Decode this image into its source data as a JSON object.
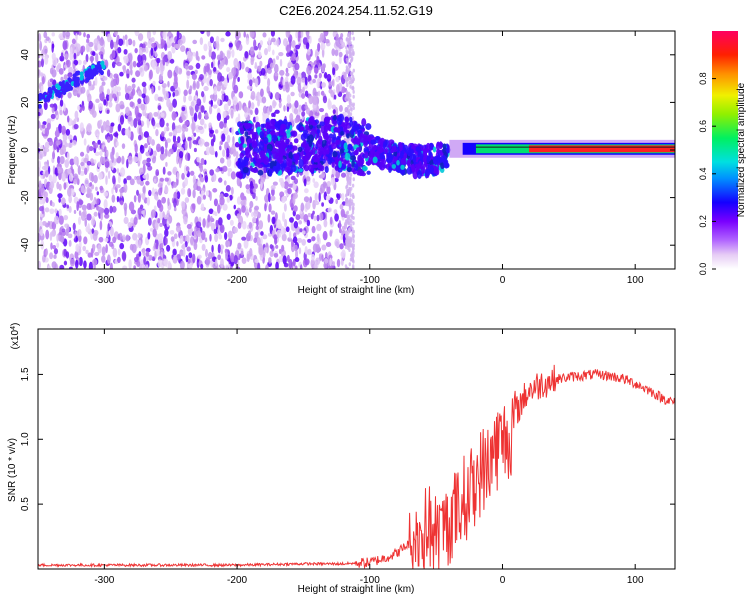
{
  "title": "C2E6.2024.254.11.52.G19",
  "chart_data": [
    {
      "type": "heatmap",
      "title": "C2E6.2024.254.11.52.G19",
      "xlabel": "Height of straight line (km)",
      "ylabel": "Frequency (Hz)",
      "xlim": [
        -350,
        130
      ],
      "ylim": [
        -50,
        50
      ],
      "xticks": [
        -300,
        -200,
        -100,
        0,
        100
      ],
      "yticks": [
        -40,
        -20,
        0,
        20,
        40
      ],
      "colorbar": {
        "label": "Normalized spectral amplitude",
        "range": [
          0,
          1
        ],
        "ticks": [
          "0.0",
          "0.2",
          "0.4",
          "0.6",
          "0.8"
        ]
      },
      "signal_track": {
        "description_points_x": [
          -350,
          -320,
          -300,
          -250,
          -200,
          -150,
          -120,
          -100,
          -80,
          -60,
          -40,
          -20,
          0,
          50,
          100,
          130
        ],
        "description_points_y": [
          20,
          30,
          35,
          5,
          0,
          2,
          3,
          0,
          -3,
          -5,
          -2,
          0,
          1,
          1,
          1,
          1
        ]
      }
    },
    {
      "type": "line",
      "xlabel": "Height of straight line (km)",
      "ylabel": "SNR (10 * v/v)",
      "y_multiplier": "(x10^4)",
      "xlim": [
        -350,
        130
      ],
      "ylim": [
        0,
        1.85
      ],
      "xticks": [
        -300,
        -200,
        -100,
        0,
        100
      ],
      "yticks": [
        0.5,
        1.0,
        1.5
      ],
      "series": [
        {
          "color": "#ee3333",
          "x": [
            -350,
            -300,
            -250,
            -200,
            -150,
            -120,
            -100,
            -90,
            -80,
            -70,
            -60,
            -55,
            -50,
            -45,
            -40,
            -35,
            -30,
            -25,
            -20,
            -15,
            -12,
            -10,
            -5,
            0,
            5,
            10,
            15,
            20,
            30,
            40,
            50,
            60,
            70,
            80,
            90,
            100,
            110,
            120,
            130
          ],
          "y": [
            0.03,
            0.03,
            0.03,
            0.03,
            0.04,
            0.04,
            0.05,
            0.08,
            0.12,
            0.2,
            0.35,
            0.4,
            0.3,
            0.35,
            0.45,
            0.5,
            0.6,
            0.65,
            0.75,
            0.85,
            0.8,
            0.95,
            1.0,
            1.05,
            1.1,
            1.2,
            1.3,
            1.38,
            1.43,
            1.46,
            1.48,
            1.49,
            1.5,
            1.49,
            1.47,
            1.43,
            1.38,
            1.32,
            1.28
          ]
        }
      ]
    }
  ]
}
